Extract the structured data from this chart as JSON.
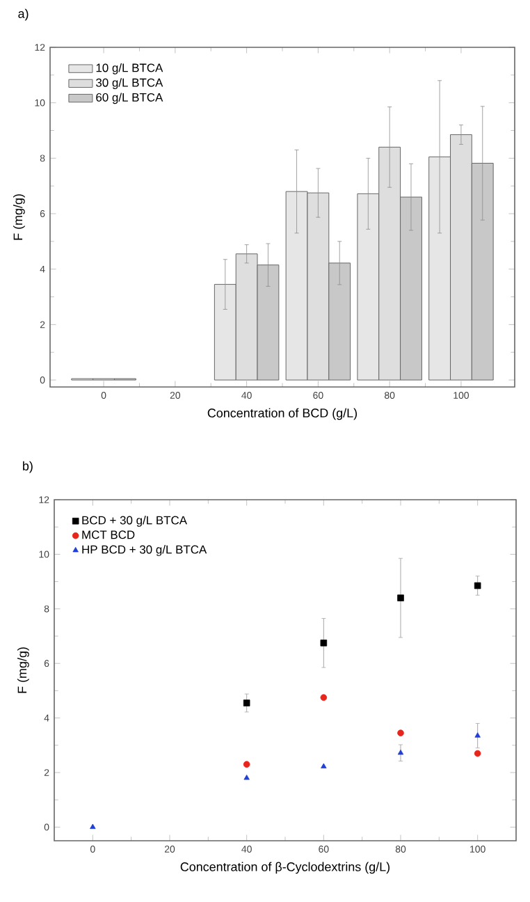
{
  "chart_data": [
    {
      "type": "bar",
      "title": "a)",
      "xlabel": "Concentration of BCD (g/L)",
      "ylabel": "F (mg/g)",
      "x": [
        0,
        40,
        60,
        80,
        100
      ],
      "xlim": [
        -15,
        115
      ],
      "xticks": [
        0,
        20,
        40,
        60,
        80,
        100
      ],
      "ylim": [
        -0.25,
        12
      ],
      "yticks": [
        0,
        2,
        4,
        6,
        8,
        10,
        12
      ],
      "legend": "top left",
      "series": [
        {
          "name": "10 g/L BTCA",
          "color": "#e6e6e6",
          "values": [
            0.05,
            3.45,
            6.8,
            6.72,
            8.05
          ],
          "errors": [
            null,
            0.9,
            1.5,
            1.28,
            2.75
          ]
        },
        {
          "name": "30 g/L BTCA",
          "color": "#dedede",
          "values": [
            0.05,
            4.55,
            6.75,
            8.4,
            8.85
          ],
          "errors": [
            null,
            0.33,
            0.88,
            1.45,
            0.35
          ]
        },
        {
          "name": "60 g/L BTCA",
          "color": "#c8c8c8",
          "values": [
            0.05,
            4.15,
            4.22,
            6.6,
            7.82
          ],
          "errors": [
            null,
            0.77,
            0.78,
            1.2,
            2.05
          ]
        }
      ]
    },
    {
      "type": "scatter",
      "title": "b)",
      "xlabel": "Concentration of β-Cyclodextrins (g/L)",
      "ylabel": "F (mg/g)",
      "x": [
        0,
        40,
        60,
        80,
        100
      ],
      "xlim": [
        -10,
        110
      ],
      "xticks": [
        0,
        20,
        40,
        60,
        80,
        100
      ],
      "ylim": [
        -0.5,
        12
      ],
      "yticks": [
        0,
        2,
        4,
        6,
        8,
        10,
        12
      ],
      "legend": "top left",
      "series": [
        {
          "name": "BCD + 30 g/L BTCA",
          "color": "#000000",
          "marker": "square",
          "values": [
            null,
            4.55,
            6.75,
            8.4,
            8.85
          ],
          "errors": [
            null,
            0.33,
            0.9,
            1.45,
            0.35
          ]
        },
        {
          "name": "MCT BCD",
          "color": "#e8251c",
          "marker": "circle",
          "values": [
            null,
            2.3,
            4.75,
            3.45,
            2.7
          ]
        },
        {
          "name": "HP BCD + 30 g/L BTCA",
          "color": "#1f3fd6",
          "marker": "triangle",
          "values": [
            0,
            1.8,
            2.22,
            2.72,
            3.35
          ],
          "errors": [
            null,
            null,
            null,
            0.3,
            0.45
          ]
        }
      ]
    }
  ]
}
